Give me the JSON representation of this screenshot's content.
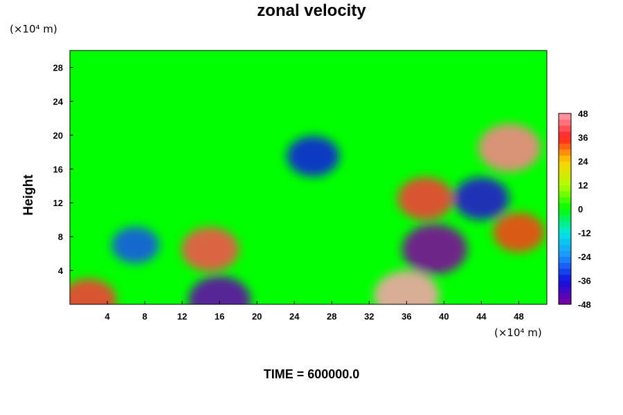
{
  "chart_data": {
    "type": "heatmap",
    "title": "zonal velocity",
    "ylabel": "Height",
    "x_unit": "(×10⁴ m)",
    "y_unit": "(×10⁴ m)",
    "xlim": [
      0,
      51
    ],
    "ylim": [
      0,
      30
    ],
    "x_ticks": [
      4,
      8,
      12,
      16,
      20,
      24,
      28,
      32,
      36,
      40,
      44,
      48
    ],
    "y_ticks": [
      4,
      8,
      12,
      16,
      20,
      24,
      28
    ],
    "colorbar": {
      "min": -48,
      "max": 48,
      "ticks": [
        48,
        36,
        24,
        12,
        0,
        -12,
        -24,
        -36,
        -48
      ]
    },
    "features": [
      {
        "x": 7,
        "y": 7,
        "value": -30
      },
      {
        "x": 15,
        "y": 6.5,
        "value": 40
      },
      {
        "x": 39,
        "y": 6.5,
        "value": -48
      },
      {
        "x": 36,
        "y": 1,
        "value": 48
      },
      {
        "x": 47,
        "y": 18.5,
        "value": 45
      },
      {
        "x": 26,
        "y": 17.5,
        "value": -35
      },
      {
        "x": 44,
        "y": 12.5,
        "value": -38
      },
      {
        "x": 38,
        "y": 12.5,
        "value": 38
      },
      {
        "x": 48,
        "y": 8.5,
        "value": 34
      },
      {
        "x": 16,
        "y": 0.5,
        "value": -45
      },
      {
        "x": 2,
        "y": 0.5,
        "value": 38
      }
    ],
    "background_value": 0,
    "grid": false,
    "legend": "right colorbar"
  },
  "footer": {
    "time_label": "TIME = 600000.0"
  }
}
